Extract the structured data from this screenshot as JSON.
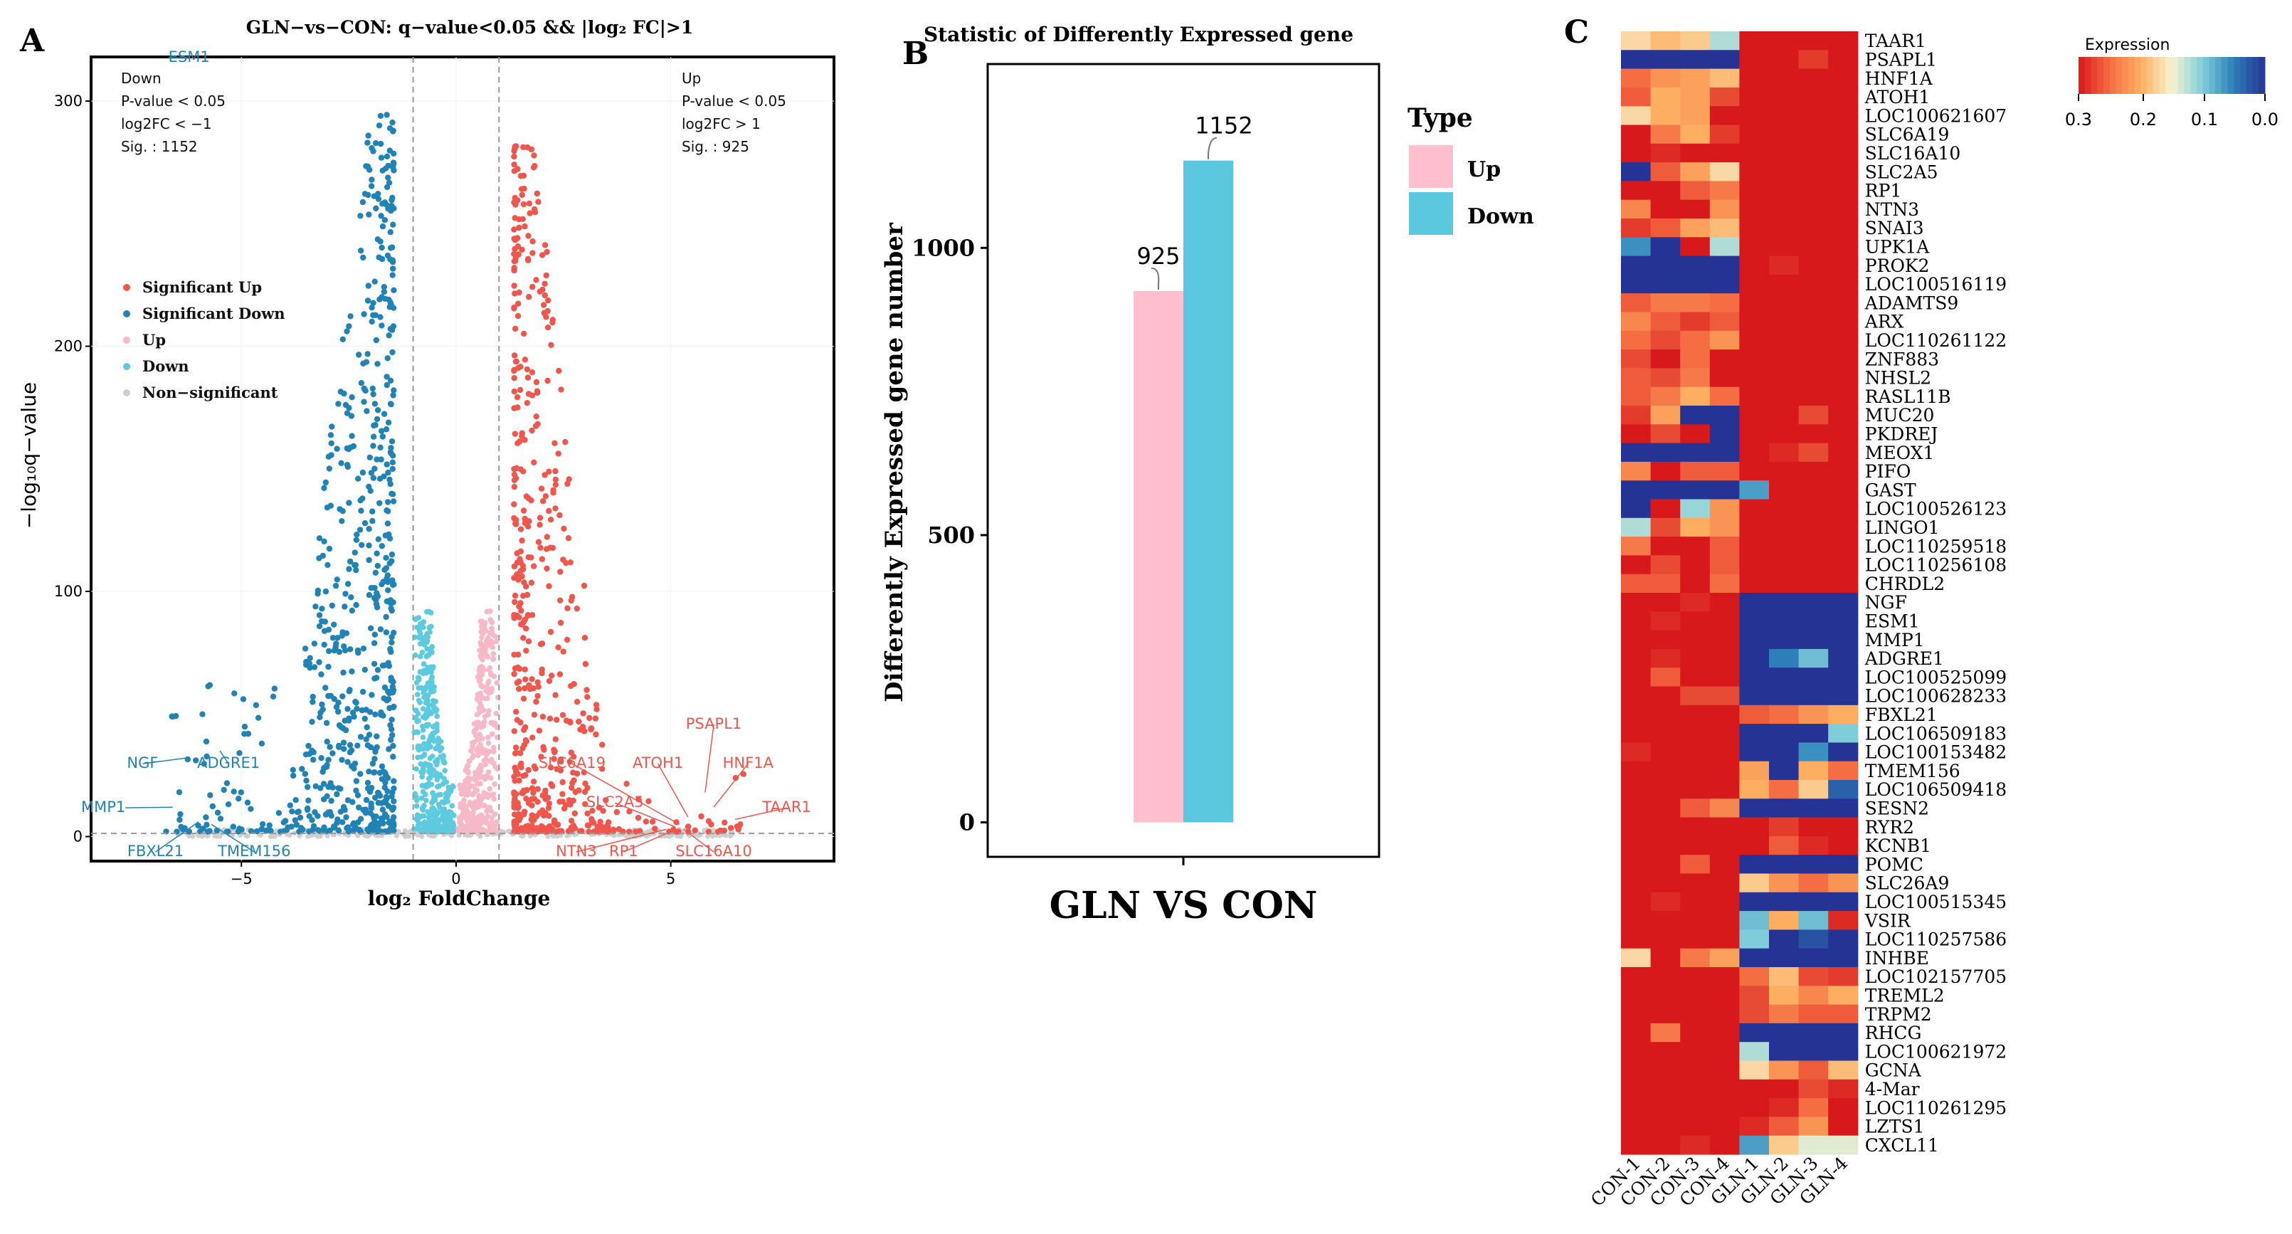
{
  "panel_letters": [
    "A",
    "B",
    "C"
  ],
  "colors": {
    "sig_up": "#f0564b",
    "sig_down": "#2183b5",
    "up": "#f7b9c8",
    "down": "#5ccbdf",
    "ns": "#cfcfcf",
    "bar_up": "#ffbfcf",
    "bar_down": "#5bc8e0"
  },
  "chart_data": [
    {
      "panel": "A",
      "type": "scatter",
      "title": "GLN−vs−CON: q−value<0.05 && |log₂ FC|>1",
      "xlabel": "log₂ FoldChange",
      "ylabel": "−log₁₀q−value",
      "xlim": [
        -8.5,
        8.8
      ],
      "ylim": [
        -10,
        318
      ],
      "xticks": [
        -5,
        0,
        5
      ],
      "yticks": [
        0,
        100,
        200,
        300
      ],
      "fc_thresholds": [
        -1,
        1
      ],
      "q_threshold_line": 1.3,
      "legend": [
        "Significant Up",
        "Significant Down",
        "Up",
        "Down",
        "Non−significant"
      ],
      "down_box": [
        "Down",
        "P-value < 0.05",
        "log2FC < −1",
        "Sig. : 1152"
      ],
      "up_box": [
        "Up",
        "P-value < 0.05",
        "log2FC > 1",
        "Sig. : 925"
      ],
      "labeled_genes": [
        {
          "gene": "ESM1",
          "x": -6.2,
          "y": 322,
          "group": "down"
        },
        {
          "gene": "NGF",
          "x": -6.3,
          "y": 32,
          "group": "down"
        },
        {
          "gene": "ADGRE1",
          "x": -5.5,
          "y": 35,
          "group": "down"
        },
        {
          "gene": "MMP1",
          "x": -6.6,
          "y": 12,
          "group": "down"
        },
        {
          "gene": "FBXL21",
          "x": -6.0,
          "y": 6,
          "group": "down"
        },
        {
          "gene": "TMEM156",
          "x": -5.7,
          "y": 5,
          "group": "down"
        },
        {
          "gene": "PSAPL1",
          "x": 5.8,
          "y": 18,
          "group": "up"
        },
        {
          "gene": "HNF1A",
          "x": 6.0,
          "y": 12,
          "group": "up"
        },
        {
          "gene": "TAAR1",
          "x": 6.5,
          "y": 7,
          "group": "up"
        },
        {
          "gene": "ATOH1",
          "x": 5.4,
          "y": 8,
          "group": "up"
        },
        {
          "gene": "SLC6A19",
          "x": 5.2,
          "y": 5,
          "group": "up"
        },
        {
          "gene": "SLC2A5",
          "x": 5.1,
          "y": 4,
          "group": "up"
        },
        {
          "gene": "NTN3",
          "x": 4.9,
          "y": 3,
          "group": "up"
        },
        {
          "gene": "RP1",
          "x": 5.0,
          "y": 2,
          "group": "up"
        },
        {
          "gene": "SLC16A10",
          "x": 5.3,
          "y": 3,
          "group": "up"
        }
      ]
    },
    {
      "panel": "B",
      "type": "bar",
      "title": "Statistic of Differently Expressed gene",
      "xlabel": "GLN VS CON",
      "ylabel": "Differently Expressed gene number",
      "ylim": [
        -60,
        1320
      ],
      "yticks": [
        0,
        500,
        1000
      ],
      "legend_title": "Type",
      "series": [
        {
          "name": "Up",
          "values": [
            925
          ]
        },
        {
          "name": "Down",
          "values": [
            1152
          ]
        }
      ]
    },
    {
      "panel": "C",
      "type": "heatmap",
      "legend_title": "Expression",
      "colorbar_ticks": [
        "0.3",
        "0.2",
        "0.1",
        "0.0"
      ],
      "columns": [
        "CON-1",
        "CON-2",
        "CON-3",
        "CON-4",
        "GLN-1",
        "GLN-2",
        "GLN-3",
        "GLN-4"
      ],
      "rows": [
        "TAAR1",
        "PSAPL1",
        "HNF1A",
        "ATOH1",
        "LOC100621607",
        "SLC6A19",
        "SLC16A10",
        "SLC2A5",
        "RP1",
        "NTN3",
        "SNAI3",
        "UPK1A",
        "PROK2",
        "LOC100516119",
        "ADAMTS9",
        "ARX",
        "LOC110261122",
        "ZNF883",
        "NHSL2",
        "RASL11B",
        "MUC20",
        "PKDREJ",
        "MEOX1",
        "PIFO",
        "GAST",
        "LOC100526123",
        "LINGO1",
        "LOC110259518",
        "LOC110256108",
        "CHRDL2",
        "NGF",
        "ESM1",
        "MMP1",
        "ADGRE1",
        "LOC100525099",
        "LOC100628233",
        "FBXL21",
        "LOC106509183",
        "LOC100153482",
        "TMEM156",
        "LOC106509418",
        "SESN2",
        "RYR2",
        "KCNB1",
        "POMC",
        "SLC26A9",
        "LOC100515345",
        "VSIR",
        "LOC110257586",
        "INHBE",
        "LOC102157705",
        "TREML2",
        "TRPM2",
        "RHCG",
        "LOC100621972",
        "GCNA",
        "4-Mar",
        "LOC110261295",
        "LZTS1",
        "CXCL11"
      ],
      "values": [
        [
          0.17,
          0.19,
          0.18,
          0.12,
          0.3,
          0.3,
          0.3,
          0.3
        ],
        [
          0.0,
          0.0,
          0.0,
          0.0,
          0.3,
          0.3,
          0.28,
          0.3
        ],
        [
          0.25,
          0.22,
          0.21,
          0.19,
          0.3,
          0.3,
          0.3,
          0.3
        ],
        [
          0.26,
          0.2,
          0.21,
          0.27,
          0.3,
          0.3,
          0.3,
          0.3
        ],
        [
          0.17,
          0.2,
          0.21,
          0.3,
          0.3,
          0.3,
          0.3,
          0.3
        ],
        [
          0.3,
          0.24,
          0.2,
          0.28,
          0.3,
          0.3,
          0.3,
          0.3
        ],
        [
          0.3,
          0.29,
          0.3,
          0.3,
          0.3,
          0.3,
          0.3,
          0.3
        ],
        [
          0.0,
          0.26,
          0.21,
          0.17,
          0.3,
          0.3,
          0.3,
          0.3
        ],
        [
          0.3,
          0.3,
          0.26,
          0.24,
          0.3,
          0.3,
          0.3,
          0.3
        ],
        [
          0.23,
          0.3,
          0.3,
          0.22,
          0.3,
          0.3,
          0.3,
          0.3
        ],
        [
          0.28,
          0.26,
          0.21,
          0.19,
          0.3,
          0.3,
          0.3,
          0.3
        ],
        [
          0.06,
          0.0,
          0.3,
          0.12,
          0.3,
          0.3,
          0.3,
          0.3
        ],
        [
          0.0,
          0.0,
          0.0,
          0.0,
          0.3,
          0.29,
          0.3,
          0.3
        ],
        [
          0.0,
          0.0,
          0.0,
          0.0,
          0.3,
          0.3,
          0.3,
          0.3
        ],
        [
          0.26,
          0.24,
          0.24,
          0.25,
          0.3,
          0.3,
          0.3,
          0.3
        ],
        [
          0.23,
          0.26,
          0.28,
          0.26,
          0.3,
          0.3,
          0.3,
          0.3
        ],
        [
          0.25,
          0.27,
          0.25,
          0.22,
          0.3,
          0.3,
          0.3,
          0.3
        ],
        [
          0.27,
          0.3,
          0.25,
          0.3,
          0.3,
          0.3,
          0.3,
          0.3
        ],
        [
          0.26,
          0.27,
          0.24,
          0.3,
          0.3,
          0.3,
          0.3,
          0.3
        ],
        [
          0.26,
          0.24,
          0.2,
          0.25,
          0.3,
          0.3,
          0.3,
          0.3
        ],
        [
          0.28,
          0.21,
          0.0,
          0.0,
          0.3,
          0.3,
          0.27,
          0.3
        ],
        [
          0.3,
          0.27,
          0.3,
          0.0,
          0.3,
          0.3,
          0.3,
          0.3
        ],
        [
          0.0,
          0.0,
          0.0,
          0.0,
          0.3,
          0.29,
          0.27,
          0.3
        ],
        [
          0.23,
          0.3,
          0.26,
          0.26,
          0.3,
          0.3,
          0.3,
          0.3
        ],
        [
          0.0,
          0.0,
          0.0,
          0.0,
          0.07,
          0.3,
          0.3,
          0.3
        ],
        [
          0.0,
          0.3,
          0.11,
          0.22,
          0.3,
          0.3,
          0.3,
          0.3
        ],
        [
          0.12,
          0.27,
          0.2,
          0.22,
          0.3,
          0.3,
          0.3,
          0.3
        ],
        [
          0.24,
          0.3,
          0.3,
          0.26,
          0.3,
          0.3,
          0.3,
          0.3
        ],
        [
          0.3,
          0.27,
          0.3,
          0.26,
          0.3,
          0.3,
          0.3,
          0.3
        ],
        [
          0.26,
          0.26,
          0.3,
          0.25,
          0.3,
          0.3,
          0.3,
          0.3
        ],
        [
          0.3,
          0.3,
          0.29,
          0.3,
          0.0,
          0.0,
          0.0,
          0.0
        ],
        [
          0.3,
          0.29,
          0.3,
          0.3,
          0.0,
          0.0,
          0.0,
          0.0
        ],
        [
          0.3,
          0.3,
          0.3,
          0.3,
          0.0,
          0.0,
          0.0,
          0.0
        ],
        [
          0.3,
          0.29,
          0.3,
          0.3,
          0.0,
          0.05,
          0.09,
          0.0
        ],
        [
          0.3,
          0.26,
          0.3,
          0.3,
          0.0,
          0.0,
          0.0,
          0.0
        ],
        [
          0.3,
          0.3,
          0.27,
          0.27,
          0.0,
          0.0,
          0.0,
          0.0
        ],
        [
          0.3,
          0.3,
          0.3,
          0.3,
          0.26,
          0.25,
          0.22,
          0.2
        ],
        [
          0.3,
          0.3,
          0.3,
          0.3,
          0.0,
          0.0,
          0.0,
          0.1
        ],
        [
          0.29,
          0.3,
          0.3,
          0.3,
          0.0,
          0.0,
          0.06,
          0.0
        ],
        [
          0.3,
          0.3,
          0.3,
          0.3,
          0.21,
          0.0,
          0.2,
          0.25
        ],
        [
          0.3,
          0.3,
          0.3,
          0.3,
          0.2,
          0.25,
          0.18,
          0.03
        ],
        [
          0.3,
          0.3,
          0.26,
          0.23,
          0.0,
          0.0,
          0.0,
          0.0
        ],
        [
          0.3,
          0.3,
          0.3,
          0.3,
          0.3,
          0.28,
          0.3,
          0.3
        ],
        [
          0.3,
          0.3,
          0.3,
          0.3,
          0.3,
          0.26,
          0.29,
          0.3
        ],
        [
          0.3,
          0.3,
          0.26,
          0.3,
          0.0,
          0.0,
          0.0,
          0.0
        ],
        [
          0.3,
          0.3,
          0.3,
          0.3,
          0.18,
          0.22,
          0.25,
          0.22
        ],
        [
          0.3,
          0.29,
          0.3,
          0.3,
          0.0,
          0.0,
          0.0,
          0.0
        ],
        [
          0.3,
          0.3,
          0.3,
          0.3,
          0.09,
          0.2,
          0.09,
          0.29
        ],
        [
          0.3,
          0.3,
          0.3,
          0.3,
          0.1,
          0.0,
          0.02,
          0.0
        ],
        [
          0.17,
          0.3,
          0.24,
          0.21,
          0.0,
          0.0,
          0.0,
          0.0
        ],
        [
          0.3,
          0.3,
          0.3,
          0.3,
          0.25,
          0.19,
          0.27,
          0.28
        ],
        [
          0.3,
          0.3,
          0.3,
          0.3,
          0.27,
          0.2,
          0.23,
          0.2
        ],
        [
          0.3,
          0.3,
          0.3,
          0.3,
          0.27,
          0.24,
          0.26,
          0.26
        ],
        [
          0.3,
          0.24,
          0.3,
          0.3,
          0.0,
          0.0,
          0.0,
          0.0
        ],
        [
          0.3,
          0.3,
          0.3,
          0.3,
          0.12,
          0.0,
          0.0,
          0.0
        ],
        [
          0.3,
          0.3,
          0.3,
          0.3,
          0.17,
          0.22,
          0.26,
          0.19
        ],
        [
          0.3,
          0.3,
          0.3,
          0.3,
          0.3,
          0.3,
          0.27,
          0.29
        ],
        [
          0.3,
          0.3,
          0.3,
          0.3,
          0.3,
          0.29,
          0.25,
          0.3
        ],
        [
          0.3,
          0.3,
          0.3,
          0.3,
          0.29,
          0.26,
          0.22,
          0.3
        ],
        [
          0.3,
          0.3,
          0.29,
          0.3,
          0.07,
          0.18,
          0.14,
          0.14
        ]
      ]
    }
  ]
}
